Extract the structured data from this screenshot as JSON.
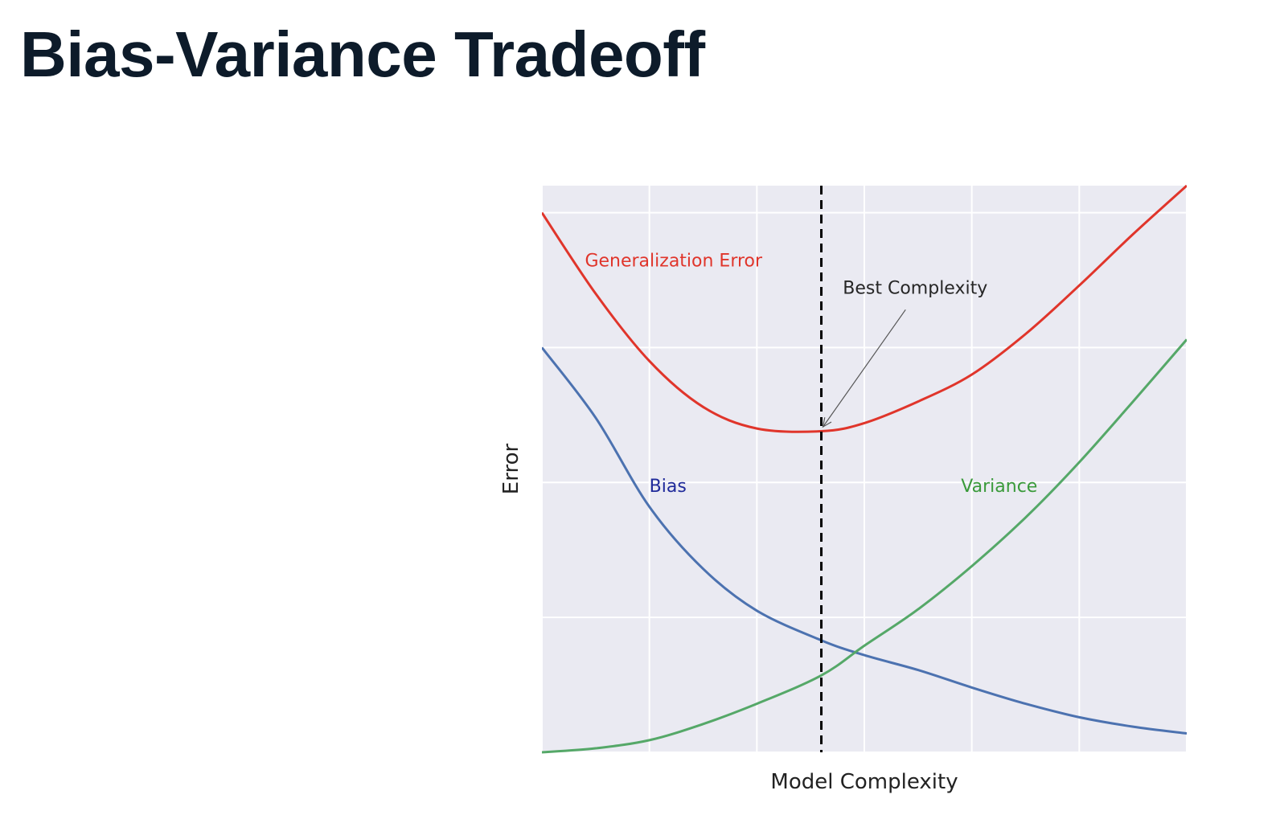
{
  "page": {
    "title": "Bias-Variance Tradeoff"
  },
  "chart_data": {
    "type": "line",
    "xlabel": "Model Complexity",
    "ylabel": "Error",
    "xlim": [
      0,
      6
    ],
    "ylim": [
      0,
      4.2
    ],
    "grid": true,
    "x_ticks": [
      0,
      1,
      2,
      3,
      4,
      5,
      6
    ],
    "y_ticks": [
      0,
      1,
      2,
      3,
      4
    ],
    "series": [
      {
        "name": "Bias",
        "color": "#4c72b0",
        "label_color": "#1f2a9a",
        "x": [
          0,
          0.5,
          1,
          1.5,
          2,
          2.6,
          3,
          3.5,
          4,
          4.5,
          5,
          5.5,
          6
        ],
        "y": [
          3.0,
          2.48,
          1.82,
          1.36,
          1.05,
          0.83,
          0.72,
          0.61,
          0.48,
          0.36,
          0.26,
          0.19,
          0.14
        ]
      },
      {
        "name": "Variance",
        "color": "#55a868",
        "label_color": "#3a9a3a",
        "x": [
          0,
          0.5,
          1,
          1.5,
          2,
          2.6,
          3,
          3.5,
          4,
          4.5,
          5,
          5.5,
          6
        ],
        "y": [
          0.0,
          0.03,
          0.09,
          0.21,
          0.36,
          0.57,
          0.79,
          1.06,
          1.38,
          1.74,
          2.15,
          2.6,
          3.06
        ]
      },
      {
        "name": "Generalization Error",
        "color": "#e0352b",
        "label_color": "#e0352b",
        "x": [
          0,
          0.5,
          1,
          1.5,
          2,
          2.6,
          3,
          3.5,
          4,
          4.5,
          5,
          5.5,
          6
        ],
        "y": [
          4.0,
          3.4,
          2.9,
          2.56,
          2.4,
          2.38,
          2.44,
          2.6,
          2.8,
          3.1,
          3.46,
          3.84,
          4.2
        ]
      }
    ],
    "annotations": [
      {
        "text": "Generalization Error",
        "x": 0.4,
        "y": 3.6,
        "series": "Generalization Error"
      },
      {
        "text": "Bias",
        "x": 1.0,
        "y": 1.93,
        "series": "Bias"
      },
      {
        "text": "Variance",
        "x": 3.9,
        "y": 1.93,
        "series": "Variance"
      },
      {
        "text": "Best Complexity",
        "x": 2.8,
        "y": 3.4,
        "arrow_to": [
          2.6,
          2.4
        ]
      }
    ],
    "vline": {
      "x": 2.6,
      "style": "dashed",
      "color": "#000000"
    }
  }
}
